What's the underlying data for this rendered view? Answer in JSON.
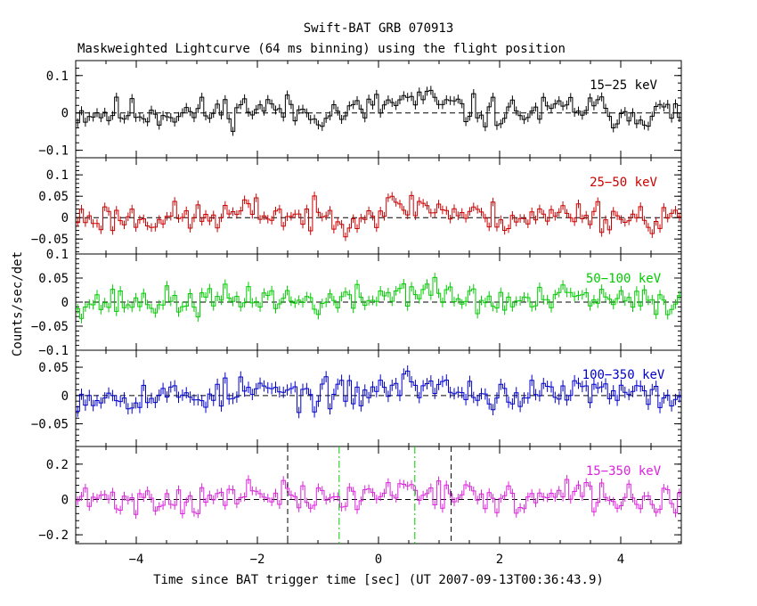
{
  "title": "Swift-BAT GRB 070913",
  "subtitle": "Maskweighted Lightcurve (64 ms binning) using the flight position",
  "xlabel": "Time since BAT trigger time [sec] (UT 2007-09-13T00:36:43.9)",
  "ylabel": "Counts/sec/det",
  "chart_data": {
    "type": "line",
    "xlim": [
      -5,
      5
    ],
    "x_ticks": [
      -4,
      -2,
      0,
      2,
      4
    ],
    "x_tick_labels": [
      "−4",
      "−2",
      "0",
      "2",
      "4"
    ],
    "bin_width_s": 0.064,
    "panels": [
      {
        "name": "15−25 keV",
        "color": "#000000",
        "ylim": [
          -0.12,
          0.14
        ],
        "yticks": [
          -0.1,
          0,
          0.1
        ],
        "ytick_labels": [
          "−0.1",
          "0",
          "0.1"
        ],
        "amp": 0.035,
        "sig": 0.012,
        "seed": 11
      },
      {
        "name": "25−50 keV",
        "color": "#cc0000",
        "ylim": [
          -0.085,
          0.14
        ],
        "yticks": [
          -0.05,
          0,
          0.05,
          0.1
        ],
        "ytick_labels": [
          "−0.05",
          "0",
          "0.05",
          "0.1"
        ],
        "amp": 0.03,
        "sig": 0.01,
        "seed": 23
      },
      {
        "name": "50−100 keV",
        "color": "#00cc00",
        "ylim": [
          -0.1,
          0.1
        ],
        "yticks": [
          -0.1,
          -0.05,
          0,
          0.05,
          0.1
        ],
        "ytick_labels": [
          "−0.1",
          "−0.05",
          "0",
          "0.05",
          "0.1"
        ],
        "amp": 0.025,
        "sig": 0.01,
        "seed": 37
      },
      {
        "name": "100−350 keV",
        "color": "#0000cc",
        "ylim": [
          -0.09,
          0.08
        ],
        "yticks": [
          -0.05,
          0,
          0.05
        ],
        "ytick_labels": [
          "−0.05",
          "0",
          "0.05"
        ],
        "amp": 0.022,
        "sig": 0.01,
        "seed": 53
      },
      {
        "name": "15−350 keV",
        "color": "#dd22dd",
        "ylim": [
          -0.25,
          0.3
        ],
        "yticks": [
          -0.2,
          0,
          0.2
        ],
        "ytick_labels": [
          "−0.2",
          "0",
          "0.2"
        ],
        "amp": 0.07,
        "sig": 0.025,
        "seed": 71
      }
    ],
    "vlines": [
      {
        "x": -1.5,
        "color": "#000000",
        "style": "dashed"
      },
      {
        "x": 1.2,
        "color": "#000000",
        "style": "dashed"
      },
      {
        "x": -0.65,
        "color": "#00cc00",
        "style": "dashdot"
      },
      {
        "x": 0.6,
        "color": "#00cc00",
        "style": "dashdot"
      }
    ]
  }
}
